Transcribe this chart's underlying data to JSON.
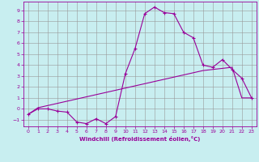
{
  "xlabel": "Windchill (Refroidissement éolien,°C)",
  "background_color": "#c8eef0",
  "grid_color": "#999999",
  "line_color": "#990099",
  "xlim": [
    -0.5,
    23.5
  ],
  "ylim": [
    -1.6,
    9.8
  ],
  "xticks": [
    0,
    1,
    2,
    3,
    4,
    5,
    6,
    7,
    8,
    9,
    10,
    11,
    12,
    13,
    14,
    15,
    16,
    17,
    18,
    19,
    20,
    21,
    22,
    23
  ],
  "yticks": [
    -1,
    0,
    1,
    2,
    3,
    4,
    5,
    6,
    7,
    8,
    9
  ],
  "curve1_x": [
    0,
    1,
    2,
    3,
    4,
    5,
    6,
    7,
    8,
    9,
    10,
    11,
    12,
    13,
    14,
    15,
    16,
    17,
    18,
    19,
    20,
    21,
    22,
    23
  ],
  "curve1_y": [
    -0.5,
    0.0,
    0.0,
    -0.2,
    -0.3,
    -1.2,
    -1.35,
    -0.9,
    -1.35,
    -0.7,
    3.2,
    5.5,
    8.7,
    9.3,
    8.8,
    8.7,
    7.0,
    6.5,
    4.0,
    3.8,
    4.5,
    3.6,
    2.8,
    1.0
  ],
  "curve2_x": [
    0,
    1,
    2,
    3,
    4,
    5,
    6,
    7,
    8,
    9,
    10,
    11,
    12,
    13,
    14,
    15,
    16,
    17,
    18,
    19,
    20,
    21,
    22,
    23
  ],
  "curve2_y": [
    -0.5,
    0.1,
    0.3,
    0.5,
    0.7,
    0.9,
    1.1,
    1.3,
    1.5,
    1.7,
    1.9,
    2.1,
    2.3,
    2.5,
    2.7,
    2.9,
    3.1,
    3.3,
    3.5,
    3.6,
    3.7,
    3.8,
    1.0,
    1.0
  ]
}
